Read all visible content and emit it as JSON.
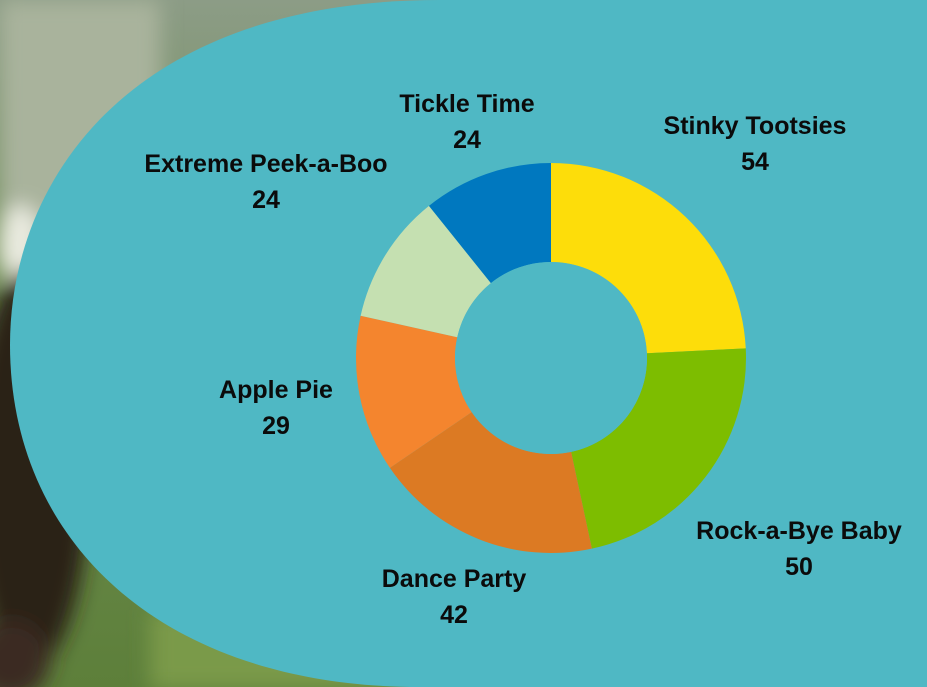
{
  "chart_data": {
    "type": "pie",
    "donut": true,
    "categories": [
      "Stinky Tootsies",
      "Rock-a-Bye Baby",
      "Dance Party",
      "Apple Pie",
      "Extreme Peek-a-Boo",
      "Tickle Time"
    ],
    "values": [
      54,
      50,
      42,
      29,
      24,
      24
    ],
    "colors": [
      "#FDDD0A",
      "#7DBD00",
      "#DC7A23",
      "#F4852E",
      "#C5E0B1",
      "#0078BF"
    ],
    "title": "",
    "legend": "none",
    "data_labels": "outside"
  },
  "theme": {
    "panel_color": "#4FB8C4",
    "photo_tint": "#8E9E86"
  }
}
